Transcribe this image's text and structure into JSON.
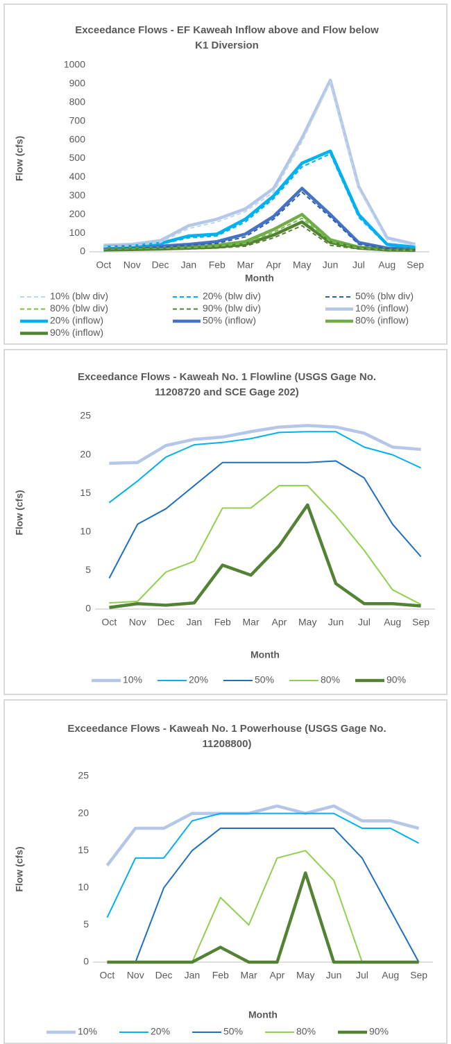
{
  "chart_data": [
    {
      "type": "line",
      "title": "Exceedance Flows - EF Kaweah Inflow above and Flow below K1 Diversion",
      "xlabel": "Month",
      "ylabel": "Flow (cfs)",
      "categories": [
        "Oct",
        "Nov",
        "Dec",
        "Jan",
        "Feb",
        "Mar",
        "Apr",
        "May",
        "Jun",
        "Jul",
        "Aug",
        "Sep"
      ],
      "ylim": [
        0,
        1000
      ],
      "yticks": [
        0,
        100,
        200,
        300,
        400,
        500,
        600,
        700,
        800,
        900,
        1000
      ],
      "grid": false,
      "legend": "bottom",
      "series": [
        {
          "name": "10% (blw div)",
          "color": "#bdd7ee",
          "style": "dashed",
          "values": [
            28,
            33,
            50,
            125,
            160,
            215,
            320,
            590,
            910,
            340,
            65,
            35
          ]
        },
        {
          "name": "20% (blw div)",
          "color": "#00b0f0",
          "style": "dashed",
          "values": [
            20,
            25,
            40,
            75,
            85,
            160,
            285,
            455,
            525,
            185,
            35,
            20
          ]
        },
        {
          "name": "50% (blw div)",
          "color": "#2e5fa8",
          "style": "dashed",
          "values": [
            15,
            20,
            25,
            35,
            45,
            80,
            175,
            320,
            185,
            40,
            18,
            12
          ]
        },
        {
          "name": "80% (blw div)",
          "color": "#70c04a",
          "style": "dashed",
          "values": [
            12,
            15,
            17,
            22,
            30,
            45,
            105,
            180,
            55,
            20,
            10,
            8
          ]
        },
        {
          "name": "90% (blw div)",
          "color": "#548235",
          "style": "dashed",
          "values": [
            8,
            10,
            12,
            15,
            20,
            30,
            75,
            140,
            35,
            15,
            8,
            6
          ]
        },
        {
          "name": "10% (inflow)",
          "color": "#b4c7e7",
          "style": "thick",
          "values": [
            35,
            40,
            60,
            140,
            175,
            230,
            340,
            610,
            920,
            350,
            75,
            40
          ]
        },
        {
          "name": "20% (inflow)",
          "color": "#00b0f0",
          "style": "thick",
          "values": [
            25,
            30,
            45,
            85,
            95,
            175,
            300,
            475,
            540,
            200,
            40,
            25
          ]
        },
        {
          "name": "50% (inflow)",
          "color": "#4472c4",
          "style": "thick",
          "values": [
            20,
            25,
            30,
            40,
            55,
            95,
            190,
            340,
            200,
            50,
            20,
            15
          ]
        },
        {
          "name": "80% (inflow)",
          "color": "#70ad47",
          "style": "thick",
          "values": [
            15,
            18,
            20,
            25,
            35,
            55,
            120,
            200,
            65,
            25,
            12,
            10
          ]
        },
        {
          "name": "90% (inflow)",
          "color": "#548235",
          "style": "thick",
          "values": [
            10,
            12,
            15,
            20,
            25,
            40,
            90,
            160,
            50,
            20,
            10,
            8
          ]
        }
      ]
    },
    {
      "type": "line",
      "title": "Exceedance Flows - Kaweah No. 1 Flowline (USGS Gage No. 11208720 and SCE Gage 202)",
      "xlabel": "Month",
      "ylabel": "Flow (cfs)",
      "categories": [
        "Oct",
        "Nov",
        "Dec",
        "Jan",
        "Feb",
        "Mar",
        "Apr",
        "May",
        "Jun",
        "Jul",
        "Aug",
        "Sep"
      ],
      "ylim": [
        0,
        25
      ],
      "yticks": [
        0,
        5,
        10,
        15,
        20,
        25
      ],
      "grid": false,
      "legend": "bottom",
      "series": [
        {
          "name": "10%",
          "color": "#b4c7e7",
          "style": "thick",
          "values": [
            18.9,
            19,
            21.2,
            22,
            22.3,
            23,
            23.6,
            23.8,
            23.6,
            22.8,
            21,
            20.7
          ]
        },
        {
          "name": "20%",
          "color": "#00b0f0",
          "style": "thin",
          "values": [
            13.8,
            16.6,
            19.7,
            21.3,
            21.6,
            22.1,
            22.9,
            23,
            23,
            21,
            20,
            18.3
          ]
        },
        {
          "name": "50%",
          "color": "#1f6fc0",
          "style": "thin",
          "values": [
            4,
            11,
            13,
            16,
            19,
            19,
            19,
            19,
            19.2,
            17,
            11,
            6.8
          ]
        },
        {
          "name": "80%",
          "color": "#8fd14f",
          "style": "thin",
          "values": [
            0.8,
            1,
            4.8,
            6.2,
            13.1,
            13.1,
            16,
            16,
            12.1,
            7.6,
            2.5,
            0.6
          ]
        },
        {
          "name": "90%",
          "color": "#548235",
          "style": "thick",
          "values": [
            0.2,
            0.7,
            0.5,
            0.8,
            5.7,
            4.4,
            8.2,
            13.5,
            3.3,
            0.7,
            0.7,
            0.4
          ]
        }
      ]
    },
    {
      "type": "line",
      "title": "Exceedance Flows - Kaweah No. 1 Powerhouse (USGS Gage No. 11208800)",
      "xlabel": "Month",
      "ylabel": "Flow (cfs)",
      "categories": [
        "Oct",
        "Nov",
        "Dec",
        "Jan",
        "Feb",
        "Mar",
        "Apr",
        "May",
        "Jun",
        "Jul",
        "Aug",
        "Sep"
      ],
      "ylim": [
        0,
        25
      ],
      "yticks": [
        0,
        5,
        10,
        15,
        20,
        25
      ],
      "grid": false,
      "legend": "bottom",
      "series": [
        {
          "name": "10%",
          "color": "#b4c7e7",
          "style": "thick",
          "values": [
            13,
            18,
            18,
            20,
            20,
            20,
            21,
            20,
            21,
            19,
            19,
            18
          ]
        },
        {
          "name": "20%",
          "color": "#00b0f0",
          "style": "thin",
          "values": [
            6,
            14,
            14,
            19,
            20,
            20,
            20,
            20,
            20,
            18,
            18,
            16
          ]
        },
        {
          "name": "50%",
          "color": "#1f6fc0",
          "style": "thin",
          "values": [
            0,
            0,
            10,
            15,
            18,
            18,
            18,
            18,
            18,
            14,
            7,
            0
          ]
        },
        {
          "name": "80%",
          "color": "#8fd14f",
          "style": "thin",
          "values": [
            0,
            0,
            0,
            0,
            8.7,
            5,
            14,
            15,
            11,
            0,
            0,
            0
          ]
        },
        {
          "name": "90%",
          "color": "#548235",
          "style": "thick",
          "values": [
            0,
            0,
            0,
            0,
            2,
            0,
            0,
            12,
            0,
            0,
            0,
            0
          ]
        }
      ]
    }
  ]
}
